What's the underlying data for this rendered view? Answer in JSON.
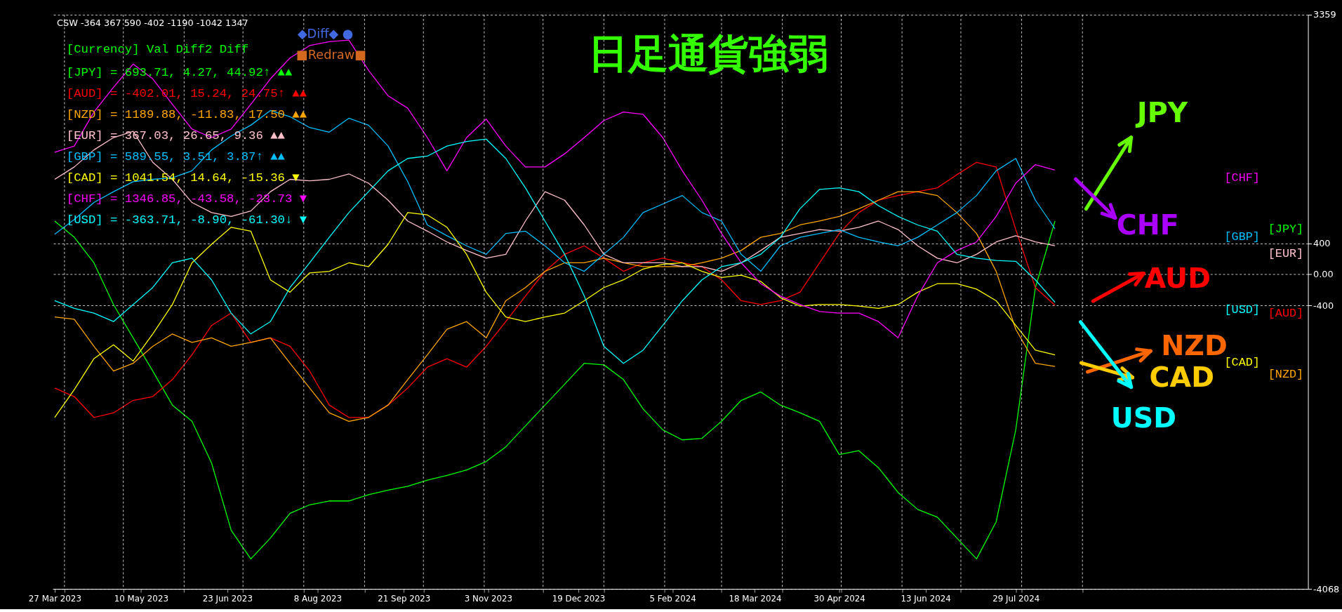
{
  "chart_data": {
    "type": "line",
    "title": "日足通貨強弱",
    "annotations": [
      "CSW -364 367 590 -402 -1190 -1042 1347",
      "◆Diff◆ ●",
      "■Redraw■",
      "[Currency]  Val    Diff2   Diff",
      "[JPY] =  693.71,    4.27,  44.92↑ ▲▲",
      "[AUD] = -402.01,   15.24,  24.75↑ ▲▲",
      "[NZD] = 1189.88,  -11.83,  17.50  ▲▲",
      "[EUR] =  367.03,   26.65,   9.36  ▲▲",
      "[GBP] =  589.55,    3.51,   3.87↑ ▲▲",
      "[CAD] = 1041.54,   14.64, -15.36  ▼",
      "[CHF] = 1346.85,  -43.58, -23.73  ▼",
      "[USD] = -363.71,   -8.90, -61.30↓ ▼",
      "JPY",
      "CHF",
      "AUD",
      "NZD",
      "CAD",
      "USD"
    ],
    "x": [
      "2023-03-27",
      "2023-04-06",
      "2023-04-16",
      "2023-04-26",
      "2023-05-06",
      "2023-05-16",
      "2023-05-26",
      "2023-06-05",
      "2023-06-15",
      "2023-06-25",
      "2023-07-05",
      "2023-07-15",
      "2023-07-25",
      "2023-08-04",
      "2023-08-14",
      "2023-08-24",
      "2023-09-03",
      "2023-09-13",
      "2023-09-23",
      "2023-10-03",
      "2023-10-13",
      "2023-10-23",
      "2023-11-02",
      "2023-11-12",
      "2023-11-22",
      "2023-12-02",
      "2023-12-12",
      "2023-12-22",
      "2024-01-01",
      "2024-01-11",
      "2024-01-21",
      "2024-01-31",
      "2024-02-10",
      "2024-02-20",
      "2024-03-01",
      "2024-03-11",
      "2024-03-21",
      "2024-03-31",
      "2024-04-10",
      "2024-04-20",
      "2024-04-30",
      "2024-05-10",
      "2024-05-20",
      "2024-05-30",
      "2024-06-09",
      "2024-06-19",
      "2024-06-29",
      "2024-07-09",
      "2024-07-19",
      "2024-07-29",
      "2024-08-08",
      "2024-08-18"
    ],
    "series": [
      {
        "name": "[JPY]",
        "color": "#00ff00",
        "values": [
          690,
          480,
          150,
          -390,
          -820,
          -1250,
          -1690,
          -1900,
          -2440,
          -3310,
          -3680,
          -3410,
          -3090,
          -2980,
          -2930,
          -2930,
          -2850,
          -2790,
          -2740,
          -2660,
          -2600,
          -2530,
          -2420,
          -2230,
          -1960,
          -1690,
          -1420,
          -1150,
          -1170,
          -1360,
          -1740,
          -2010,
          -2140,
          -2120,
          -1900,
          -1630,
          -1520,
          -1690,
          -1790,
          -1900,
          -2330,
          -2280,
          -2500,
          -2820,
          -3040,
          -3140,
          -3410,
          -3680,
          -3200,
          -2010,
          -170,
          690
        ]
      },
      {
        "name": "[AUD]",
        "color": "#ff0000",
        "values": [
          -1470,
          -1580,
          -1850,
          -1790,
          -1630,
          -1580,
          -1360,
          -1040,
          -660,
          -500,
          -880,
          -820,
          -930,
          -1250,
          -1690,
          -1850,
          -1850,
          -1690,
          -1470,
          -1200,
          -1090,
          -1200,
          -930,
          -610,
          -280,
          40,
          260,
          370,
          210,
          40,
          150,
          210,
          150,
          100,
          -70,
          -340,
          -390,
          -340,
          -230,
          150,
          530,
          800,
          960,
          1020,
          1070,
          1120,
          1290,
          1450,
          1390,
          580,
          -170,
          -400
        ]
      },
      {
        "name": "[NZD]",
        "color": "#ffa500",
        "values": [
          -550,
          -580,
          -930,
          -1250,
          -1150,
          -930,
          -770,
          -880,
          -820,
          -930,
          -880,
          -820,
          -1150,
          -1470,
          -1790,
          -1900,
          -1850,
          -1690,
          -1360,
          -1040,
          -710,
          -610,
          -820,
          -340,
          -170,
          40,
          150,
          150,
          210,
          150,
          100,
          100,
          100,
          150,
          210,
          310,
          480,
          530,
          640,
          690,
          750,
          850,
          960,
          1070,
          1070,
          1020,
          800,
          530,
          40,
          -710,
          -1150,
          -1190
        ]
      },
      {
        "name": "[EUR]",
        "color": "#ffc0cb",
        "values": [
          1230,
          1390,
          1610,
          1770,
          1850,
          1450,
          1230,
          930,
          800,
          750,
          820,
          1070,
          1230,
          1210,
          1230,
          1300,
          1180,
          960,
          690,
          560,
          420,
          310,
          210,
          260,
          690,
          1070,
          960,
          640,
          260,
          150,
          150,
          150,
          100,
          100,
          40,
          150,
          310,
          480,
          530,
          580,
          560,
          610,
          690,
          580,
          370,
          210,
          150,
          260,
          420,
          500,
          420,
          370
        ]
      },
      {
        "name": "[GBP]",
        "color": "#00bfff",
        "values": [
          520,
          710,
          930,
          1070,
          1200,
          1230,
          1250,
          1340,
          1610,
          1790,
          1930,
          2120,
          2040,
          1900,
          1840,
          2020,
          1930,
          1660,
          1200,
          640,
          500,
          370,
          260,
          530,
          560,
          370,
          150,
          40,
          260,
          480,
          800,
          910,
          1020,
          800,
          690,
          260,
          40,
          370,
          480,
          530,
          580,
          480,
          420,
          370,
          480,
          640,
          800,
          1020,
          1340,
          1500,
          960,
          590
        ]
      },
      {
        "name": "[CAD]",
        "color": "#ffff00",
        "values": [
          -1850,
          -1490,
          -1090,
          -910,
          -1120,
          -770,
          -390,
          150,
          390,
          610,
          560,
          -70,
          -230,
          20,
          40,
          150,
          100,
          390,
          800,
          770,
          610,
          260,
          -230,
          -550,
          -610,
          -550,
          -500,
          -340,
          -170,
          -70,
          70,
          130,
          150,
          40,
          -40,
          -10,
          -90,
          -300,
          -410,
          -390,
          -390,
          -410,
          -440,
          -390,
          -230,
          -120,
          -120,
          -190,
          -340,
          -660,
          -980,
          -1040
        ]
      },
      {
        "name": "[CHF]",
        "color": "#ff00ff",
        "values": [
          1580,
          1660,
          2100,
          2420,
          2720,
          2530,
          2200,
          1880,
          1770,
          1880,
          2200,
          2530,
          2800,
          2960,
          3010,
          3030,
          2640,
          2310,
          2150,
          1770,
          1340,
          1770,
          2010,
          1660,
          1390,
          1390,
          1560,
          1770,
          1990,
          2100,
          2070,
          1770,
          1340,
          960,
          530,
          150,
          -120,
          -280,
          -390,
          -480,
          -500,
          -500,
          -610,
          -820,
          -280,
          150,
          310,
          420,
          750,
          1180,
          1420,
          1350
        ]
      },
      {
        "name": "[USD]",
        "color": "#00ffff",
        "values": [
          -340,
          -440,
          -500,
          -610,
          -390,
          -170,
          150,
          210,
          -70,
          -500,
          -770,
          -610,
          -170,
          150,
          480,
          800,
          1070,
          1340,
          1500,
          1530,
          1660,
          1720,
          1750,
          1500,
          1120,
          690,
          260,
          -280,
          -930,
          -1150,
          -980,
          -660,
          -340,
          -70,
          100,
          150,
          260,
          480,
          850,
          1100,
          1120,
          1070,
          890,
          750,
          640,
          560,
          260,
          210,
          180,
          170,
          -70,
          -360
        ]
      }
    ],
    "xlim": [
      "2023-03-26",
      "2024-12-25"
    ],
    "ylim": [
      -4068,
      3359
    ],
    "xticks": [
      {
        "value": "2023-03-27",
        "label": "27 Mar 2023"
      },
      {
        "value": "2023-04-01",
        "label": null
      },
      {
        "value": "2023-05-01",
        "label": null
      },
      {
        "value": "2023-05-10",
        "label": "10 May 2023"
      },
      {
        "value": "2023-06-01",
        "label": null
      },
      {
        "value": "2023-06-23",
        "label": "23 Jun 2023"
      },
      {
        "value": "2023-07-01",
        "label": null
      },
      {
        "value": "2023-08-01",
        "label": null
      },
      {
        "value": "2023-08-08",
        "label": "8 Aug 2023"
      },
      {
        "value": "2023-09-01",
        "label": null
      },
      {
        "value": "2023-09-21",
        "label": "21 Sep 2023"
      },
      {
        "value": "2023-10-01",
        "label": null
      },
      {
        "value": "2023-11-01",
        "label": null
      },
      {
        "value": "2023-11-03",
        "label": "3 Nov 2023"
      },
      {
        "value": "2023-12-01",
        "label": null
      },
      {
        "value": "2023-12-19",
        "label": "19 Dec 2023"
      },
      {
        "value": "2024-01-01",
        "label": null
      },
      {
        "value": "2024-02-01",
        "label": null
      },
      {
        "value": "2024-02-05",
        "label": "5 Feb 2024"
      },
      {
        "value": "2024-03-01",
        "label": null
      },
      {
        "value": "2024-03-18",
        "label": "18 Mar 2024"
      },
      {
        "value": "2024-04-01",
        "label": null
      },
      {
        "value": "2024-04-30",
        "label": "30 Apr 2024"
      },
      {
        "value": "2024-05-01",
        "label": null
      },
      {
        "value": "2024-06-01",
        "label": null
      },
      {
        "value": "2024-06-13",
        "label": "13 Jun 2024"
      },
      {
        "value": "2024-07-01",
        "label": null
      },
      {
        "value": "2024-07-29",
        "label": "29 Jul 2024"
      },
      {
        "value": "2024-08-01",
        "label": null
      },
      {
        "value": "2024-09-01",
        "label": null
      }
    ],
    "yticks": [
      -4068,
      -400,
      {
        "value": 0,
        "label": "0.00"
      },
      400,
      3359
    ],
    "grid": true
  }
}
